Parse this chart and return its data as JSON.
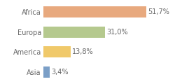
{
  "categories": [
    "Africa",
    "Europa",
    "America",
    "Asia"
  ],
  "values": [
    51.7,
    31.0,
    13.8,
    3.4
  ],
  "labels": [
    "51,7%",
    "31,0%",
    "13,8%",
    "3,4%"
  ],
  "bar_colors": [
    "#e8a97e",
    "#b5c98e",
    "#f0c96a",
    "#7b9fc7"
  ],
  "background_color": "#ffffff",
  "xlim": [
    0,
    65
  ],
  "bar_height": 0.55,
  "label_fontsize": 7.0,
  "tick_fontsize": 7.0,
  "label_color": "#666666",
  "tick_color": "#666666"
}
